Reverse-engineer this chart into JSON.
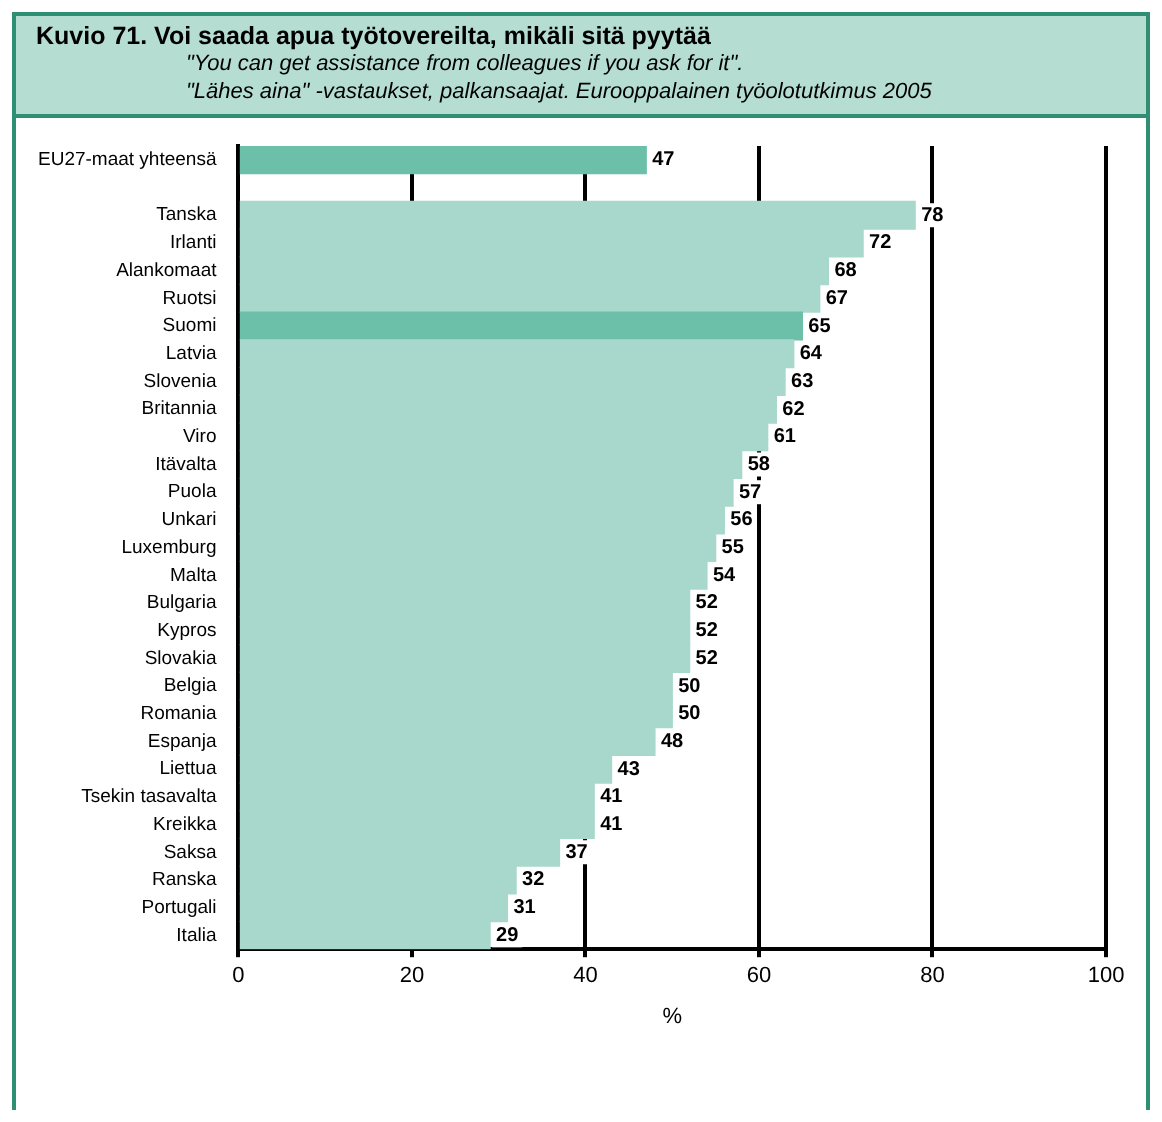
{
  "chart_data": {
    "type": "bar",
    "orientation": "horizontal",
    "title": "Kuvio 71. Voi saada apua työtovereilta, mikäli sitä pyytää",
    "subtitle": "\"You can get assistance from colleagues if you ask for it\".\n\"Lähes aina\" -vastaukset, palkansaajat. Eurooppalainen työolotutkimus 2005",
    "xlabel": "%",
    "categories": [
      "EU27-maat yhteensä",
      null,
      "Tanska",
      "Irlanti",
      "Alankomaat",
      "Ruotsi",
      "Suomi",
      "Latvia",
      "Slovenia",
      "Britannia",
      "Viro",
      "Itävalta",
      "Puola",
      "Unkari",
      "Luxemburg",
      "Malta",
      "Bulgaria",
      "Kypros",
      "Slovakia",
      "Belgia",
      "Romania",
      "Espanja",
      "Liettua",
      "Tsekin tasavalta",
      "Kreikka",
      "Saksa",
      "Ranska",
      "Portugali",
      "Italia"
    ],
    "values": [
      47,
      null,
      78,
      72,
      68,
      67,
      65,
      64,
      63,
      62,
      61,
      58,
      57,
      56,
      55,
      54,
      52,
      52,
      52,
      50,
      50,
      48,
      43,
      41,
      41,
      37,
      32,
      31,
      29
    ],
    "colors": [
      "#6cc0aa",
      "#a8d8cb",
      "#a8d8cb",
      "#a8d8cb",
      "#a8d8cb",
      "#a8d8cb",
      "#6cc0aa",
      "#a8d8cb",
      "#a8d8cb",
      "#a8d8cb",
      "#a8d8cb",
      "#a8d8cb",
      "#a8d8cb",
      "#a8d8cb",
      "#a8d8cb",
      "#a8d8cb",
      "#a8d8cb",
      "#a8d8cb",
      "#a8d8cb",
      "#a8d8cb",
      "#a8d8cb",
      "#a8d8cb",
      "#a8d8cb",
      "#a8d8cb",
      "#a8d8cb",
      "#a8d8cb",
      "#a8d8cb",
      "#a8d8cb",
      "#a8d8cb"
    ],
    "xlim": [
      0,
      100
    ],
    "xticks": [
      0,
      20,
      40,
      60,
      80,
      100
    ],
    "grid": "x",
    "data_labels": true,
    "legend": false
  }
}
